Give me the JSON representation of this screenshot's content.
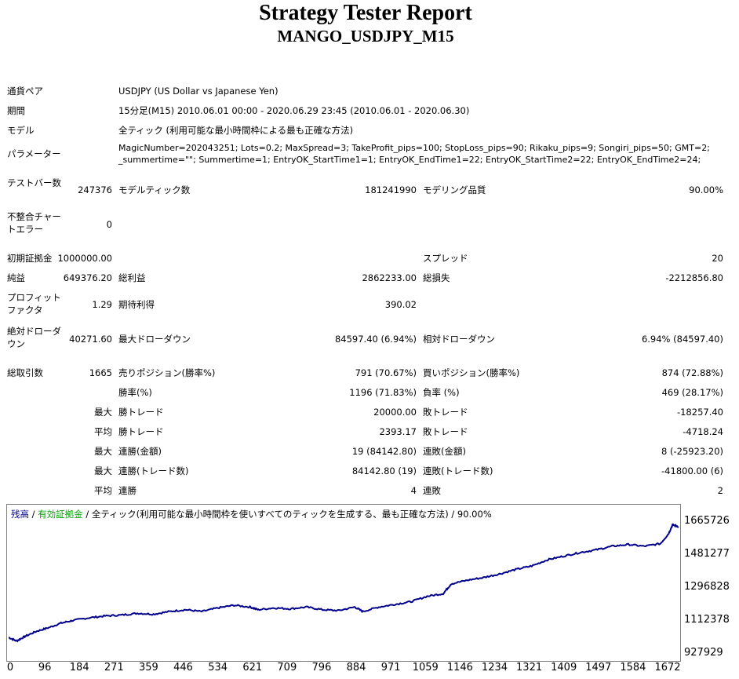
{
  "report": {
    "title": "Strategy Tester Report",
    "subtitle": "MANGO_USDJPY_M15"
  },
  "info": {
    "symbol_label": "通貨ペア",
    "symbol_value": "USDJPY (US Dollar vs Japanese Yen)",
    "period_label": "期間",
    "period_value": "15分足(M15) 2010.06.01 00:00 - 2020.06.29 23:45 (2010.06.01 - 2020.06.30)",
    "model_label": "モデル",
    "model_value": "全ティック (利用可能な最小時間枠による最も正確な方法)",
    "params_label": "パラメーター",
    "params_line1": "MagicNumber=202043251; Lots=0.2; MaxSpread=3; TakeProfit_pips=100; StopLoss_pips=90; Rikaku_pips=9; Songiri_pips=50; GMT=2;",
    "params_line2": "_summertime=\"\"; Summertime=1; EntryOK_StartTime1=1; EntryOK_EndTime1=22; EntryOK_StartTime2=22; EntryOK_EndTime2=24;"
  },
  "stats": {
    "bars_label": "テストバー数",
    "bars_value": "247376",
    "ticks_label": "モデルティック数",
    "ticks_value": "181241990",
    "quality_label": "モデリング品質",
    "quality_value": "90.00%",
    "mismatch_label": "不整合チャートエラー",
    "mismatch_value": "0",
    "deposit_label": "初期証拠金",
    "deposit_value": "1000000.00",
    "spread_label": "スプレッド",
    "spread_value": "20",
    "net_label": "純益",
    "net_value": "649376.20",
    "gross_profit_label": "総利益",
    "gross_profit_value": "2862233.00",
    "gross_loss_label": "総損失",
    "gross_loss_value": "-2212856.80",
    "pf_label": "プロフィットファクタ",
    "pf_value": "1.29",
    "expected_label": "期待利得",
    "expected_value": "390.02",
    "abs_dd_label": "絶対ドローダウン",
    "abs_dd_value": "40271.60",
    "max_dd_label": "最大ドローダウン",
    "max_dd_value": "84597.40 (6.94%)",
    "rel_dd_label": "相対ドローダウン",
    "rel_dd_value": "6.94% (84597.40)",
    "trades_label": "総取引数",
    "trades_value": "1665",
    "short_label": "売りポジション(勝率%)",
    "short_value": "791 (70.67%)",
    "long_label": "買いポジション(勝率%)",
    "long_value": "874 (72.88%)",
    "winrate_label": "勝率(%)",
    "winrate_value": "1196 (71.83%)",
    "lossrate_label": "負率 (%)",
    "lossrate_value": "469 (28.17%)",
    "max1_label": "最大",
    "max_win_label": "勝トレード",
    "max_win_value": "20000.00",
    "max_loss_label": "敗トレード",
    "max_loss_value": "-18257.40",
    "avg_label": "平均",
    "avg_win_label": "勝トレード",
    "avg_win_value": "2393.17",
    "avg_loss_label": "敗トレード",
    "avg_loss_value": "-4718.24",
    "max2_label": "最大",
    "consec_win_amt_label": "連勝(金額)",
    "consec_win_amt_value": "19 (84142.80)",
    "consec_loss_amt_label": "連敗(金額)",
    "consec_loss_amt_value": "8 (-25923.20)",
    "max3_label": "最大",
    "consec_win_cnt_label": "連勝(トレード数)",
    "consec_win_cnt_value": "84142.80 (19)",
    "consec_loss_cnt_label": "連敗(トレード数)",
    "consec_loss_cnt_value": "-41800.00 (6)",
    "avg2_label": "平均",
    "avg_consec_win_label": "連勝",
    "avg_consec_win_value": "4",
    "avg_consec_loss_label": "連敗",
    "avg_consec_loss_value": "2"
  },
  "chart_legend": {
    "balance": "残高",
    "sep1": " / ",
    "equity": "有効証拠金",
    "sep2": " / ",
    "model": "全ティック(利用可能な最小時間枠を使いすべてのティックを生成する、最も正確な方法)",
    "sep3": " / ",
    "quality": "90.00%",
    "balance_color": "#00008b",
    "equity_color": "#00a000"
  },
  "chart_data": {
    "type": "line",
    "ylim": [
      927929,
      1665726
    ],
    "yticks": [
      "1665726",
      "1481277",
      "1296828",
      "1112378",
      "927929"
    ],
    "xlim": [
      0,
      1665
    ],
    "xticks": [
      "0",
      "96",
      "184",
      "271",
      "359",
      "446",
      "534",
      "621",
      "709",
      "796",
      "884",
      "971",
      "1059",
      "1146",
      "1234",
      "1321",
      "1409",
      "1497",
      "1584",
      "1672"
    ],
    "line_color": "#00008b",
    "series": [
      {
        "x": [
          0,
          20,
          40,
          70,
          100,
          130,
          160,
          200,
          240,
          280,
          320,
          360,
          400,
          440,
          480,
          520,
          560,
          600,
          620,
          660,
          700,
          740,
          780,
          820,
          860,
          880,
          920,
          960,
          1000,
          1040,
          1080,
          1100,
          1140,
          1180,
          1220,
          1260,
          1300,
          1340,
          1380,
          1420,
          1460,
          1500,
          1540,
          1580,
          1620,
          1640,
          1650,
          1665
        ],
        "y": [
          1020000,
          1000000,
          1025000,
          1055000,
          1075000,
          1100000,
          1115000,
          1130000,
          1140000,
          1145000,
          1155000,
          1150000,
          1165000,
          1175000,
          1165000,
          1185000,
          1200000,
          1190000,
          1175000,
          1185000,
          1180000,
          1190000,
          1175000,
          1170000,
          1190000,
          1165000,
          1190000,
          1205000,
          1220000,
          1250000,
          1265000,
          1320000,
          1340000,
          1355000,
          1375000,
          1400000,
          1420000,
          1455000,
          1475000,
          1495000,
          1510000,
          1530000,
          1540000,
          1530000,
          1545000,
          1600000,
          1650000,
          1640000
        ]
      }
    ]
  }
}
